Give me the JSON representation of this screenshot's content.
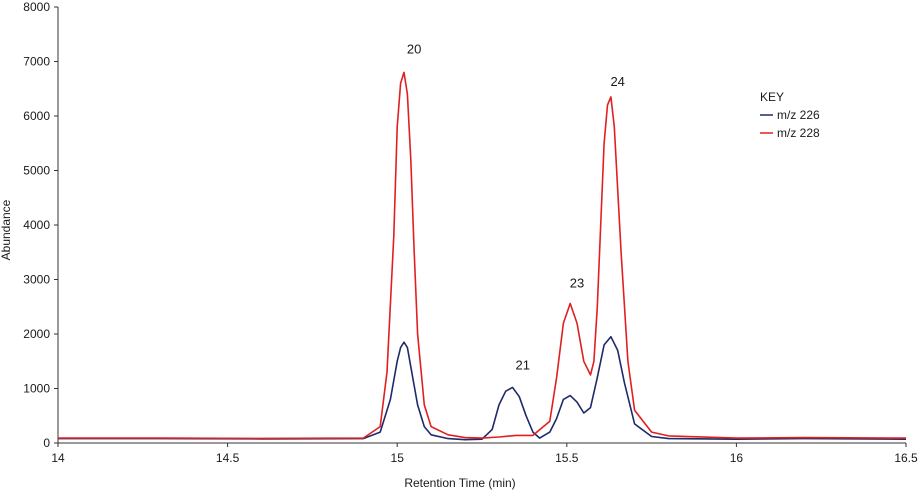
{
  "chart_data": {
    "type": "line",
    "title": "",
    "xlabel": "Retention Time (min)",
    "ylabel": "Abundance",
    "xlim": [
      14,
      16.5
    ],
    "ylim": [
      0,
      8000
    ],
    "xticks": [
      "14",
      "14.5",
      "15",
      "15.5",
      "16",
      "16.5"
    ],
    "yticks": [
      "0",
      "1000",
      "2000",
      "3000",
      "4000",
      "5000",
      "6000",
      "7000",
      "8000"
    ],
    "grid": false,
    "legend": {
      "title": "KEY",
      "position": "top-right",
      "entries": [
        "m/z 226",
        "m/z 228"
      ]
    },
    "peak_labels": [
      {
        "text": "20",
        "x": 15.05,
        "y": 7150
      },
      {
        "text": "21",
        "x": 15.37,
        "y": 1350
      },
      {
        "text": "23",
        "x": 15.53,
        "y": 2850
      },
      {
        "text": "24",
        "x": 15.65,
        "y": 6550
      }
    ],
    "series": [
      {
        "name": "m/z 226",
        "color": "#1f2a6b",
        "x": [
          14.0,
          14.3,
          14.6,
          14.9,
          14.95,
          14.98,
          15.0,
          15.01,
          15.02,
          15.03,
          15.04,
          15.06,
          15.08,
          15.1,
          15.15,
          15.2,
          15.25,
          15.28,
          15.3,
          15.32,
          15.34,
          15.36,
          15.38,
          15.4,
          15.42,
          15.45,
          15.47,
          15.49,
          15.51,
          15.53,
          15.55,
          15.57,
          15.59,
          15.61,
          15.63,
          15.65,
          15.67,
          15.7,
          15.75,
          15.8,
          16.0,
          16.2,
          16.5
        ],
        "y": [
          80,
          80,
          75,
          80,
          200,
          800,
          1500,
          1750,
          1850,
          1750,
          1400,
          700,
          300,
          150,
          80,
          60,
          70,
          250,
          700,
          950,
          1020,
          850,
          500,
          200,
          90,
          200,
          450,
          800,
          870,
          750,
          550,
          650,
          1200,
          1800,
          1950,
          1700,
          1100,
          350,
          120,
          80,
          70,
          80,
          70
        ]
      },
      {
        "name": "m/z 228",
        "color": "#e02020",
        "x": [
          14.0,
          14.3,
          14.6,
          14.9,
          14.95,
          14.97,
          14.99,
          15.0,
          15.01,
          15.02,
          15.03,
          15.04,
          15.05,
          15.06,
          15.08,
          15.1,
          15.15,
          15.2,
          15.25,
          15.3,
          15.35,
          15.4,
          15.45,
          15.47,
          15.49,
          15.51,
          15.53,
          15.55,
          15.57,
          15.58,
          15.59,
          15.6,
          15.61,
          15.62,
          15.63,
          15.64,
          15.66,
          15.68,
          15.7,
          15.75,
          15.8,
          16.0,
          16.2,
          16.5
        ],
        "y": [
          90,
          90,
          85,
          90,
          300,
          1300,
          3800,
          5800,
          6600,
          6800,
          6400,
          5200,
          3500,
          2000,
          700,
          300,
          150,
          100,
          90,
          110,
          140,
          140,
          400,
          1200,
          2200,
          2560,
          2200,
          1500,
          1250,
          1500,
          2500,
          4000,
          5500,
          6200,
          6350,
          5800,
          3500,
          1500,
          600,
          200,
          130,
          90,
          100,
          90
        ]
      }
    ]
  }
}
